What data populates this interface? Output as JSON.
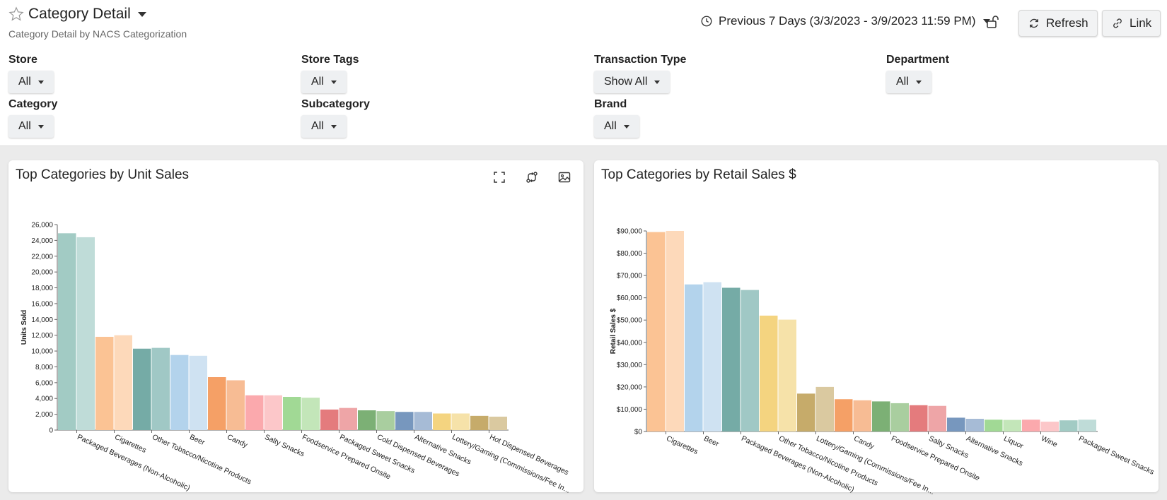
{
  "header": {
    "title": "Category Detail",
    "subtitle": "Category Detail by NACS Categorization",
    "date_range": "Previous 7 Days (3/3/2023 - 3/9/2023 11:59 PM)",
    "refresh_label": "Refresh",
    "link_label": "Link"
  },
  "filters": {
    "store": {
      "label": "Store",
      "value": "All"
    },
    "store_tags": {
      "label": "Store Tags",
      "value": "All"
    },
    "transaction_type": {
      "label": "Transaction Type",
      "value": "Show All"
    },
    "department": {
      "label": "Department",
      "value": "All"
    },
    "category": {
      "label": "Category",
      "value": "All"
    },
    "subcategory": {
      "label": "Subcategory",
      "value": "All"
    },
    "brand": {
      "label": "Brand",
      "value": "All"
    }
  },
  "icons": {
    "favorite": "star-icon",
    "date": "clock-icon",
    "lock": "unlock-icon",
    "refresh": "refresh-icon",
    "link": "link-icon",
    "expand": "fullscreen-icon",
    "compare": "compare-icon",
    "export": "image-icon"
  },
  "chart_data": [
    {
      "type": "bar",
      "title": "Top Categories by Unit Sales",
      "ylabel": "Units Sold",
      "xlabel": "",
      "ylim": [
        0,
        26000
      ],
      "yticks": [
        "0",
        "2,000",
        "4,000",
        "6,000",
        "8,000",
        "10,000",
        "12,000",
        "14,000",
        "16,000",
        "18,000",
        "20,000",
        "22,000",
        "24,000",
        "26,000"
      ],
      "categories": [
        "Packaged Beverages (Non-Alcoholic)",
        "Cigarettes",
        "Other Tobacco/Nicotine Products",
        "Beer",
        "Candy",
        "Salty Snacks",
        "Foodservice Prepared Onsite",
        "Packaged Sweet Snacks",
        "Cold Dispensed Beverages",
        "Alternative Snacks",
        "Lottery/Gaming (Commissions/Fee In...",
        "Hot Dispensed Beverages"
      ],
      "series": [
        {
          "values": [
            24900,
            11800,
            10300,
            9500,
            6700,
            4400,
            4200,
            2600,
            2500,
            2300,
            2100,
            1800
          ]
        },
        {
          "values": [
            24400,
            12000,
            10400,
            9400,
            6300,
            4400,
            4100,
            2800,
            2400,
            2300,
            2100,
            1700
          ]
        }
      ],
      "colors": [
        [
          "#a2cbc4",
          "#bfdcd8"
        ],
        [
          "#fbc394",
          "#fdd9ba"
        ],
        [
          "#75aba6",
          "#a0c8c5"
        ],
        [
          "#b3d3ec",
          "#cfe2f2"
        ],
        [
          "#f5a066",
          "#f7bc94"
        ],
        [
          "#fba9ad",
          "#fcc7c9"
        ],
        [
          "#a1d995",
          "#c3e6b9"
        ],
        [
          "#e47b7d",
          "#eea5a7"
        ],
        [
          "#7cb075",
          "#a9ce9f"
        ],
        [
          "#7797be",
          "#a6bbd6"
        ],
        [
          "#f4d480",
          "#f6e2a9"
        ],
        [
          "#c6ab6a",
          "#dac9a0"
        ]
      ]
    },
    {
      "type": "bar",
      "title": "Top Categories by Retail Sales $",
      "ylabel": "Retail Sales $",
      "xlabel": "",
      "ylim": [
        0,
        90000
      ],
      "yticks": [
        "$0",
        "$10,000",
        "$20,000",
        "$30,000",
        "$40,000",
        "$50,000",
        "$60,000",
        "$70,000",
        "$80,000",
        "$90,000"
      ],
      "categories": [
        "Cigarettes",
        "Beer",
        "Packaged Beverages (Non-Alcoholic)",
        "Other Tobacco/Nicotine Products",
        "Lottery/Gaming (Commissions/Fee In...",
        "Candy",
        "Foodservice Prepared Onsite",
        "Salty Snacks",
        "Alternative Snacks",
        "Liquor",
        "Wine",
        "Packaged Sweet Snacks"
      ],
      "series": [
        {
          "values": [
            89500,
            66000,
            64500,
            52000,
            17000,
            14500,
            13500,
            11800,
            6200,
            5300,
            5300,
            5000
          ]
        },
        {
          "values": [
            90000,
            67000,
            63500,
            50200,
            20000,
            14000,
            12700,
            11500,
            5700,
            5200,
            4400,
            5300
          ]
        }
      ],
      "colors": [
        [
          "#fbc394",
          "#fdd9ba"
        ],
        [
          "#b3d3ec",
          "#cfe2f2"
        ],
        [
          "#75aba6",
          "#a0c8c5"
        ],
        [
          "#f4d480",
          "#f6e2a9"
        ],
        [
          "#c6ab6a",
          "#dac9a0"
        ],
        [
          "#f5a066",
          "#f7bc94"
        ],
        [
          "#7cb075",
          "#a9ce9f"
        ],
        [
          "#e47b7d",
          "#eea5a7"
        ],
        [
          "#7797be",
          "#a6bbd6"
        ],
        [
          "#a1d995",
          "#c3e6b9"
        ],
        [
          "#fba9ad",
          "#fcc7c9"
        ],
        [
          "#a2cbc4",
          "#bfdcd8"
        ]
      ]
    }
  ]
}
